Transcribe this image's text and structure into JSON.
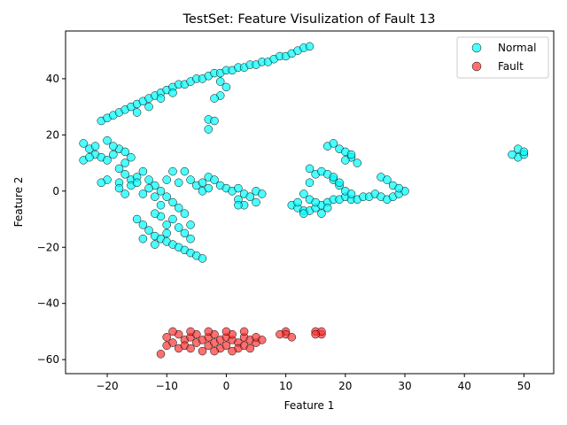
{
  "chart_data": {
    "type": "scatter",
    "title": "TestSet: Feature Visulization of Fault 13",
    "xlabel": "Feature 1",
    "ylabel": "Feature 2",
    "xlim": [
      -27,
      55
    ],
    "ylim": [
      -65,
      57
    ],
    "xticks": [
      -20,
      -10,
      0,
      10,
      20,
      30,
      40,
      50
    ],
    "yticks": [
      -60,
      -40,
      -20,
      0,
      20,
      40
    ],
    "xtick_labels": [
      "−20",
      "−10",
      "0",
      "10",
      "20",
      "30",
      "40",
      "50"
    ],
    "ytick_labels": [
      "−60",
      "−40",
      "−20",
      "0",
      "20",
      "40"
    ],
    "grid": false,
    "legend": "top-right",
    "series": [
      {
        "name": "Normal",
        "color": "#00ffff",
        "points": [
          [
            -21,
            25
          ],
          [
            -20,
            26
          ],
          [
            -19,
            27
          ],
          [
            -18,
            28
          ],
          [
            -17,
            29
          ],
          [
            -16,
            30
          ],
          [
            -15,
            31
          ],
          [
            -14,
            32
          ],
          [
            -13,
            33
          ],
          [
            -12,
            34
          ],
          [
            -11,
            35
          ],
          [
            -10,
            36
          ],
          [
            -9,
            37
          ],
          [
            -8,
            38
          ],
          [
            -7,
            38
          ],
          [
            -6,
            39
          ],
          [
            -5,
            40
          ],
          [
            -4,
            40
          ],
          [
            -3,
            41
          ],
          [
            -2,
            42
          ],
          [
            -1,
            42
          ],
          [
            0,
            43
          ],
          [
            1,
            43
          ],
          [
            2,
            44
          ],
          [
            3,
            44
          ],
          [
            4,
            45
          ],
          [
            5,
            45
          ],
          [
            6,
            46
          ],
          [
            7,
            46
          ],
          [
            8,
            47
          ],
          [
            9,
            48
          ],
          [
            10,
            48
          ],
          [
            11,
            49
          ],
          [
            12,
            50
          ],
          [
            13,
            51
          ],
          [
            14,
            51.5
          ],
          [
            -15,
            28
          ],
          [
            -13,
            30
          ],
          [
            -11,
            33
          ],
          [
            -9,
            35
          ],
          [
            -1,
            39
          ],
          [
            0,
            37
          ],
          [
            -1,
            34
          ],
          [
            -2,
            33
          ],
          [
            -3,
            25.5
          ],
          [
            -2,
            25
          ],
          [
            -3,
            22
          ],
          [
            -24,
            17
          ],
          [
            -23,
            15
          ],
          [
            -22,
            13
          ],
          [
            -21,
            12
          ],
          [
            -20,
            11
          ],
          [
            -19,
            13
          ],
          [
            -18,
            15
          ],
          [
            -17,
            14
          ],
          [
            -16,
            12
          ],
          [
            -22,
            16
          ],
          [
            -20,
            18
          ],
          [
            -19,
            16
          ],
          [
            -24,
            11
          ],
          [
            -23,
            12
          ],
          [
            -17,
            10
          ],
          [
            -18,
            8
          ],
          [
            -17,
            6
          ],
          [
            -16,
            4
          ],
          [
            -18,
            3
          ],
          [
            -20,
            4
          ],
          [
            -21,
            3
          ],
          [
            -18,
            1
          ],
          [
            -17,
            -1
          ],
          [
            -16,
            2
          ],
          [
            -15,
            5
          ],
          [
            -14,
            7
          ],
          [
            -13,
            4
          ],
          [
            -12,
            2
          ],
          [
            -11,
            0
          ],
          [
            -10,
            -2
          ],
          [
            -9,
            -4
          ],
          [
            -8,
            -6
          ],
          [
            -7,
            -8
          ],
          [
            -13,
            1
          ],
          [
            -12,
            -2
          ],
          [
            -14,
            -1
          ],
          [
            -15,
            3
          ],
          [
            -10,
            4
          ],
          [
            -9,
            7
          ],
          [
            -8,
            3
          ],
          [
            -7,
            7
          ],
          [
            -6,
            4
          ],
          [
            -5,
            2
          ],
          [
            -4,
            0
          ],
          [
            -3,
            1
          ],
          [
            -4,
            3
          ],
          [
            -3,
            5
          ],
          [
            -2,
            4
          ],
          [
            -1,
            2
          ],
          [
            0,
            1
          ],
          [
            1,
            0
          ],
          [
            2,
            1
          ],
          [
            3,
            -1
          ],
          [
            4,
            -2
          ],
          [
            5,
            0
          ],
          [
            6,
            -1
          ],
          [
            2,
            -3
          ],
          [
            3,
            -5
          ],
          [
            2,
            -5
          ],
          [
            5,
            -4
          ],
          [
            -15,
            -10
          ],
          [
            -14,
            -12
          ],
          [
            -13,
            -14
          ],
          [
            -12,
            -16
          ],
          [
            -11,
            -17
          ],
          [
            -10,
            -18
          ],
          [
            -9,
            -19
          ],
          [
            -8,
            -20
          ],
          [
            -7,
            -21
          ],
          [
            -6,
            -22
          ],
          [
            -5,
            -23
          ],
          [
            -4,
            -24
          ],
          [
            -14,
            -17
          ],
          [
            -12,
            -19
          ],
          [
            -10,
            -15
          ],
          [
            -8,
            -13
          ],
          [
            -7,
            -15
          ],
          [
            -6,
            -17
          ],
          [
            -11,
            -9
          ],
          [
            -10,
            -12
          ],
          [
            -12,
            -8
          ],
          [
            -9,
            -10
          ],
          [
            -6,
            -12
          ],
          [
            -11,
            -5
          ],
          [
            11,
            -5
          ],
          [
            12,
            -6
          ],
          [
            13,
            -7
          ],
          [
            14,
            -7
          ],
          [
            15,
            -6
          ],
          [
            16,
            -5
          ],
          [
            17,
            -4
          ],
          [
            18,
            -3
          ],
          [
            19,
            -3
          ],
          [
            20,
            -2
          ],
          [
            21,
            -3
          ],
          [
            22,
            -3
          ],
          [
            23,
            -2
          ],
          [
            24,
            -2
          ],
          [
            25,
            -1
          ],
          [
            26,
            -2
          ],
          [
            27,
            -3
          ],
          [
            28,
            -2
          ],
          [
            29,
            -1
          ],
          [
            30,
            0
          ],
          [
            26,
            5
          ],
          [
            27,
            4
          ],
          [
            28,
            2
          ],
          [
            29,
            1
          ],
          [
            13,
            -1
          ],
          [
            14,
            -3
          ],
          [
            15,
            -4
          ],
          [
            14,
            3
          ],
          [
            15,
            6
          ],
          [
            14,
            8
          ],
          [
            16,
            7
          ],
          [
            17,
            6
          ],
          [
            18,
            4
          ],
          [
            19,
            2
          ],
          [
            20,
            0
          ],
          [
            21,
            -1
          ],
          [
            17,
            16
          ],
          [
            18,
            17
          ],
          [
            19,
            15
          ],
          [
            20,
            14
          ],
          [
            21,
            12
          ],
          [
            22,
            10
          ],
          [
            20,
            11
          ],
          [
            21,
            13
          ],
          [
            18,
            5
          ],
          [
            19,
            3
          ],
          [
            12,
            -4
          ],
          [
            13,
            -8
          ],
          [
            16,
            -8
          ],
          [
            17,
            -6
          ],
          [
            49,
            12
          ],
          [
            50,
            13
          ],
          [
            49,
            15
          ],
          [
            50,
            14
          ],
          [
            48,
            13
          ]
        ]
      },
      {
        "name": "Fault",
        "color": "#ff3333",
        "points": [
          [
            -11,
            -58
          ],
          [
            -10,
            -55
          ],
          [
            -10,
            -52
          ],
          [
            -9,
            -54
          ],
          [
            -8,
            -51
          ],
          [
            -8,
            -56
          ],
          [
            -7,
            -53
          ],
          [
            -7,
            -55
          ],
          [
            -6,
            -52
          ],
          [
            -6,
            -56
          ],
          [
            -5,
            -54
          ],
          [
            -5,
            -51
          ],
          [
            -4,
            -53
          ],
          [
            -4,
            -57
          ],
          [
            -3,
            -55
          ],
          [
            -3,
            -52
          ],
          [
            -2,
            -54
          ],
          [
            -2,
            -51
          ],
          [
            -1,
            -53
          ],
          [
            -1,
            -56
          ],
          [
            0,
            -52
          ],
          [
            0,
            -55
          ],
          [
            1,
            -53
          ],
          [
            1,
            -51
          ],
          [
            2,
            -54
          ],
          [
            2,
            -56
          ],
          [
            3,
            -52
          ],
          [
            3,
            -55
          ],
          [
            4,
            -53
          ],
          [
            4,
            -56
          ],
          [
            5,
            -54
          ],
          [
            5,
            -52
          ],
          [
            6,
            -53
          ],
          [
            -9,
            -50
          ],
          [
            -6,
            -50
          ],
          [
            -3,
            -50
          ],
          [
            0,
            -50
          ],
          [
            3,
            -50
          ],
          [
            -2,
            -57
          ],
          [
            1,
            -57
          ],
          [
            10,
            -50
          ],
          [
            10,
            -51
          ],
          [
            11,
            -52
          ],
          [
            9,
            -51
          ],
          [
            15,
            -50
          ],
          [
            16,
            -51
          ],
          [
            16,
            -50
          ],
          [
            15,
            -51
          ]
        ]
      }
    ]
  }
}
